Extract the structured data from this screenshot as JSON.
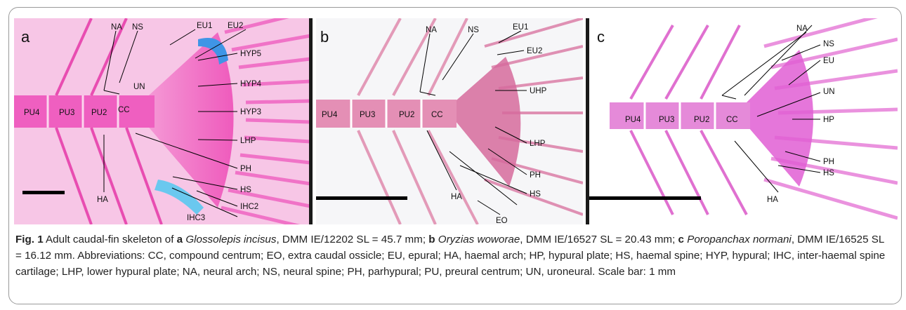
{
  "panels": [
    {
      "id": "a",
      "letter": "a",
      "labels": {
        "NA": "NA",
        "NS": "NS",
        "EU1": "EU1",
        "EU2": "EU2",
        "HYP5": "HYP5",
        "UN": "UN",
        "HYP4": "HYP4",
        "PU4": "PU4",
        "PU3": "PU3",
        "PU2": "PU2",
        "CC": "CC",
        "HYP3": "HYP3",
        "LHP": "LHP",
        "PH": "PH",
        "HS": "HS",
        "HA": "HA",
        "IHC2": "IHC2",
        "IHC3": "IHC3"
      }
    },
    {
      "id": "b",
      "letter": "b",
      "labels": {
        "NA": "NA",
        "NS": "NS",
        "EU1": "EU1",
        "EU2": "EU2",
        "UHP": "UHP",
        "PU4": "PU4",
        "PU3": "PU3",
        "PU2": "PU2",
        "CC": "CC",
        "LHP": "LHP",
        "PH": "PH",
        "HS": "HS",
        "HA": "HA",
        "EO": "EO"
      }
    },
    {
      "id": "c",
      "letter": "c",
      "labels": {
        "NA": "NA",
        "NS": "NS",
        "EU": "EU",
        "UN": "UN",
        "PU4": "PU4",
        "PU3": "PU3",
        "PU2": "PU2",
        "CC": "CC",
        "HP": "HP",
        "PH": "PH",
        "HS": "HS",
        "HA": "HA"
      }
    }
  ],
  "caption": {
    "fig": "Fig. 1",
    "p1": " Adult caudal-fin skeleton of ",
    "a_letter": "a",
    "sp_a": "Glossolepis incisus",
    "p2": ", DMM IE/12202 SL = 45.7 mm; ",
    "b_letter": "b",
    "sp_b": "Oryzias woworae",
    "p3": ", DMM IE/16527 SL = 20.43 mm; ",
    "c_letter": "c",
    "sp_c": "Poropanchax normani",
    "p4": ", DMM IE/16525 SL = 16.12 mm. Abbreviations: CC, compound centrum; EO, extra caudal ossicle; EU, epural; HA, haemal arch; HP, hypural plate; HS, haemal spine; HYP, hypural; IHC, inter-haemal spine cartilage; LHP, lower hypural plate; NA, neural arch; NS, neural spine; PH, parhypural; PU, preural centrum; UN, uroneural. Scale bar: 1 mm"
  },
  "colors": {
    "stain_a": "#ee4fb8",
    "stain_b": "#d66b9c",
    "stain_c": "#e05ed4",
    "cartilage": "#3f95e6",
    "scale_bar": "#000000"
  }
}
